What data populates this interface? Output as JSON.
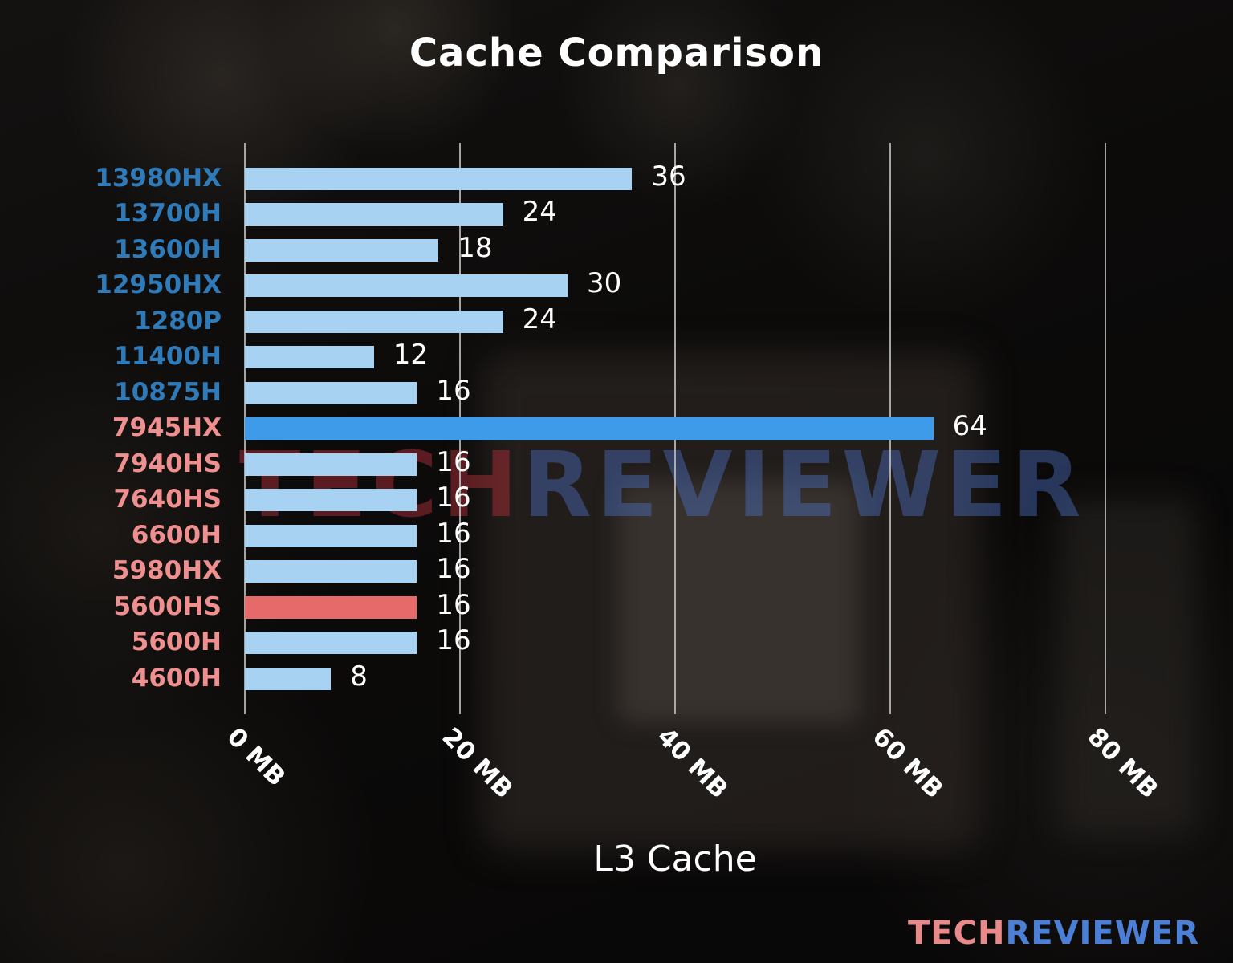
{
  "title": "Cache Comparison",
  "watermark": {
    "tech": "TECH",
    "reviewer": "REVIEWER"
  },
  "logo": {
    "tech": "TECH",
    "reviewer": "REVIEWER"
  },
  "colors": {
    "intel_label": "#2f7ab8",
    "amd_label": "#ef8f8f",
    "bar_default": "#a8d2f2",
    "bar_highlight_blue": "#3d9be9",
    "bar_highlight_red": "#e76a6a",
    "grid": "#bebebe",
    "text": "#ffffff"
  },
  "chart_data": {
    "type": "bar",
    "orientation": "horizontal",
    "title": "Cache Comparison",
    "xlabel": "L3 Cache",
    "unit": "MB",
    "xlim": [
      0,
      80
    ],
    "grid": true,
    "xticks": [
      {
        "value": 0,
        "label": "0 MB"
      },
      {
        "value": 20,
        "label": "20 MB"
      },
      {
        "value": 40,
        "label": "40 MB"
      },
      {
        "value": 60,
        "label": "60 MB"
      },
      {
        "value": 80,
        "label": "80 MB"
      }
    ],
    "categories": [
      "13980HX",
      "13700H",
      "13600H",
      "12950HX",
      "1280P",
      "11400H",
      "10875H",
      "7945HX",
      "7940HS",
      "7640HS",
      "6600H",
      "5980HX",
      "5600HS",
      "5600H",
      "4600H"
    ],
    "values": [
      36,
      24,
      18,
      30,
      24,
      12,
      16,
      64,
      16,
      16,
      16,
      16,
      16,
      16,
      8
    ],
    "rows": [
      {
        "label": "13980HX",
        "value": 36,
        "label_color": "#2f7ab8",
        "bar_color": "#a8d2f2"
      },
      {
        "label": "13700H",
        "value": 24,
        "label_color": "#2f7ab8",
        "bar_color": "#a8d2f2"
      },
      {
        "label": "13600H",
        "value": 18,
        "label_color": "#2f7ab8",
        "bar_color": "#a8d2f2"
      },
      {
        "label": "12950HX",
        "value": 30,
        "label_color": "#2f7ab8",
        "bar_color": "#a8d2f2"
      },
      {
        "label": "1280P",
        "value": 24,
        "label_color": "#2f7ab8",
        "bar_color": "#a8d2f2"
      },
      {
        "label": "11400H",
        "value": 12,
        "label_color": "#2f7ab8",
        "bar_color": "#a8d2f2"
      },
      {
        "label": "10875H",
        "value": 16,
        "label_color": "#2f7ab8",
        "bar_color": "#a8d2f2"
      },
      {
        "label": "7945HX",
        "value": 64,
        "label_color": "#ef8f8f",
        "bar_color": "#3d9be9"
      },
      {
        "label": "7940HS",
        "value": 16,
        "label_color": "#ef8f8f",
        "bar_color": "#a8d2f2"
      },
      {
        "label": "7640HS",
        "value": 16,
        "label_color": "#ef8f8f",
        "bar_color": "#a8d2f2"
      },
      {
        "label": "6600H",
        "value": 16,
        "label_color": "#ef8f8f",
        "bar_color": "#a8d2f2"
      },
      {
        "label": "5980HX",
        "value": 16,
        "label_color": "#ef8f8f",
        "bar_color": "#a8d2f2"
      },
      {
        "label": "5600HS",
        "value": 16,
        "label_color": "#ef8f8f",
        "bar_color": "#e76a6a"
      },
      {
        "label": "5600H",
        "value": 16,
        "label_color": "#ef8f8f",
        "bar_color": "#a8d2f2"
      },
      {
        "label": "4600H",
        "value": 8,
        "label_color": "#ef8f8f",
        "bar_color": "#a8d2f2"
      }
    ]
  }
}
